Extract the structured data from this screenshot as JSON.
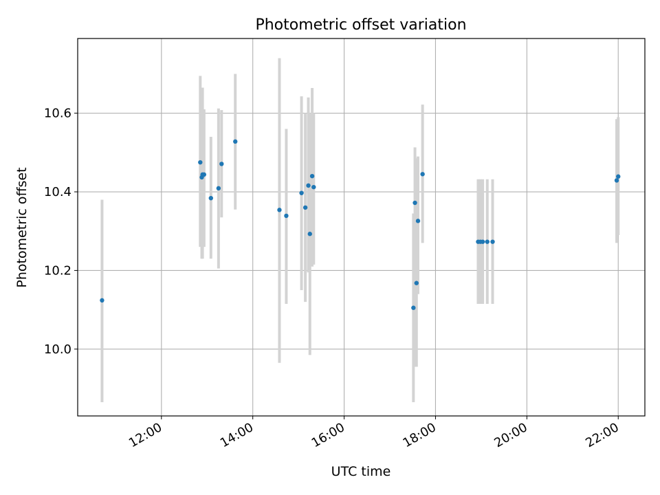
{
  "chart_data": {
    "type": "scatter",
    "title": "Photometric offset variation",
    "xlabel": "UTC time",
    "ylabel": "Photometric offset",
    "x_ticks": [
      "12:00",
      "14:00",
      "16:00",
      "18:00",
      "20:00",
      "22:00"
    ],
    "y_ticks": [
      "10.0",
      "10.2",
      "10.4",
      "10.6"
    ],
    "xlim": [
      "10:10",
      "22:35"
    ],
    "ylim": [
      9.83,
      10.79
    ],
    "grid": true,
    "series": [
      {
        "x": [
          "10:42",
          "12:51",
          "12:53",
          "12:54",
          "12:56",
          "13:05",
          "13:15",
          "13:19",
          "13:37",
          "14:35",
          "14:44",
          "15:04",
          "15:09",
          "15:13",
          "15:15",
          "15:18",
          "15:20",
          "17:31",
          "17:33",
          "17:35",
          "17:37",
          "17:43",
          "18:56",
          "18:59",
          "19:02",
          "19:08",
          "19:15",
          "21:58",
          "22:00"
        ],
        "y": [
          10.124,
          10.475,
          10.437,
          10.444,
          10.444,
          10.384,
          10.409,
          10.471,
          10.528,
          10.354,
          10.339,
          10.397,
          10.36,
          10.416,
          10.293,
          10.44,
          10.412,
          10.105,
          10.372,
          10.168,
          10.326,
          10.445,
          10.273,
          10.273,
          10.273,
          10.273,
          10.273,
          10.429,
          10.439
        ],
        "err_low": [
          9.865,
          10.26,
          10.23,
          10.23,
          10.26,
          10.23,
          10.205,
          10.335,
          10.355,
          9.965,
          10.115,
          10.15,
          10.12,
          10.195,
          9.985,
          10.21,
          10.215,
          9.865,
          9.955,
          9.955,
          10.14,
          10.27,
          10.115,
          10.115,
          10.115,
          10.115,
          10.115,
          10.27,
          10.29
        ],
        "err_high": [
          10.38,
          10.695,
          10.66,
          10.665,
          10.61,
          10.54,
          10.612,
          10.608,
          10.7,
          10.74,
          10.56,
          10.643,
          10.6,
          10.64,
          10.6,
          10.664,
          10.6,
          10.345,
          10.513,
          10.485,
          10.49,
          10.622,
          10.432,
          10.432,
          10.432,
          10.432,
          10.432,
          10.585,
          10.59
        ],
        "marker_color": "#1f77b4",
        "errorbar_color": "#d3d3d3"
      }
    ]
  }
}
